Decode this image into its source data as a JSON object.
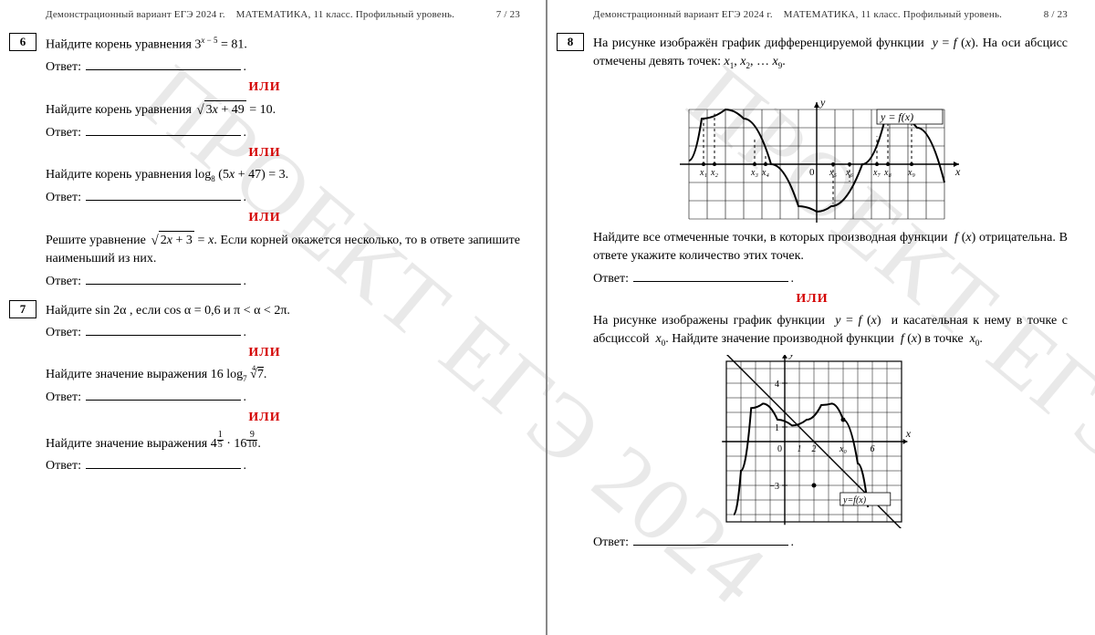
{
  "header": {
    "source": "Демонстрационный вариант ЕГЭ 2024 г.",
    "subject": "МАТЕМАТИКА, 11 класс. Профильный уровень.",
    "page_left": "7 / 23",
    "page_right": "8 / 23"
  },
  "watermark": "ПРОЕКТ ЕГЭ 2024",
  "or_label": "ИЛИ",
  "answer_label": "Ответ:",
  "colors": {
    "or_color": "#d40000",
    "text_color": "#000000",
    "watermark_color": "#d0d0d0"
  },
  "left_page": {
    "problems": [
      {
        "number": "6",
        "variants": [
          {
            "text_prefix": "Найдите корень уравнения ",
            "formula": "3^{x-5}=81",
            "text_suffix": "."
          },
          {
            "text_prefix": "Найдите корень уравнения ",
            "formula": "sqrt(3x+49)=10",
            "text_suffix": "."
          },
          {
            "text_prefix": "Найдите корень уравнения ",
            "formula": "log_8(5x+47)=3",
            "text_suffix": "."
          },
          {
            "text_prefix": "Решите уравнение ",
            "formula": "sqrt(2x+3)=x",
            "text_suffix": ". Если корней окажется несколько, то в ответе запишите наименьший из них."
          }
        ]
      },
      {
        "number": "7",
        "variants": [
          {
            "text_prefix": "Найдите ",
            "formula": "sin 2α",
            "mid": " , если ",
            "formula2": "cos α = 0,6",
            "and": " и ",
            "formula3": "π < α < 2π",
            "text_suffix": "."
          },
          {
            "text_prefix": "Найдите значение выражения ",
            "formula": "16 log_7 ⁴√7",
            "text_suffix": "."
          },
          {
            "text_prefix": "Найдите значение выражения ",
            "formula": "4^{1/5} · 16^{9/10}",
            "text_suffix": "."
          }
        ]
      }
    ]
  },
  "right_page": {
    "problems": [
      {
        "number": "8",
        "variant1": {
          "line1": "На рисунке изображён график дифференцируемой функции",
          "func": "y = f(x)",
          "line2": "На оси абсцисс отмечены девять точек:",
          "points": "x₁, x₂, … x₉",
          "question": "Найдите все отмеченные точки, в которых производная функции",
          "fx": "f(x)",
          "question2": "отрицательна. В ответе укажите количество этих точек."
        },
        "variant2": {
          "line1": "На рисунке изображены график функции",
          "func": "y = f(x)",
          "line1b": "и касательная к нему в точке с абсциссой",
          "x0": "x₀",
          "line2": "Найдите значение производной функции",
          "fx": "f(x)",
          "line3": "в точке",
          "x0b": "x₀"
        }
      }
    ],
    "graph1": {
      "type": "function-plot",
      "x_range": [
        -7,
        7
      ],
      "y_range": [
        -3,
        3.5
      ],
      "grid_color": "#000000",
      "background_color": "#ffffff",
      "curve_points": [
        [
          -7,
          0.2
        ],
        [
          -6.3,
          2.5
        ],
        [
          -5,
          3
        ],
        [
          -4,
          2.5
        ],
        [
          -2.5,
          0
        ],
        [
          -1,
          -2.3
        ],
        [
          0,
          -2.6
        ],
        [
          0.8,
          -2.3
        ],
        [
          2.5,
          0
        ],
        [
          3.7,
          2.3
        ],
        [
          4.5,
          2.6
        ],
        [
          5.5,
          2
        ],
        [
          7,
          -1
        ]
      ],
      "curve_color": "#000000",
      "curve_width": 2,
      "x_markers": [
        {
          "label": "x₁",
          "x": -6.2
        },
        {
          "label": "x₂",
          "x": -5.6
        },
        {
          "label": "x₃",
          "x": -3.4
        },
        {
          "label": "x₄",
          "x": -2.8
        },
        {
          "label": "x₅",
          "x": 0.9
        },
        {
          "label": "x₆",
          "x": 1.8
        },
        {
          "label": "x₇",
          "x": 3.3
        },
        {
          "label": "x₈",
          "x": 3.9
        },
        {
          "label": "x₉",
          "x": 5.2
        }
      ],
      "label_y": "y",
      "label_x": "x",
      "origin_label": "0",
      "func_label": "y = f(x)"
    },
    "graph2": {
      "type": "function-plot",
      "x_range": [
        -4,
        8
      ],
      "y_range": [
        -5,
        6
      ],
      "grid_color": "#000000",
      "curve_points": [
        [
          -3.5,
          -5
        ],
        [
          -3,
          -2
        ],
        [
          -2.3,
          2.3
        ],
        [
          -1.5,
          2.6
        ],
        [
          -0.5,
          1.5
        ],
        [
          0.5,
          1.1
        ],
        [
          1.5,
          1.5
        ],
        [
          2.5,
          2.5
        ],
        [
          3.2,
          2.6
        ],
        [
          4,
          1.5
        ],
        [
          5,
          -1.5
        ],
        [
          5.7,
          -4.5
        ]
      ],
      "tangent_line": {
        "x1": -4,
        "y1": 6,
        "x2": 8,
        "y2": -6
      },
      "curve_color": "#000000",
      "x_ticks": [
        {
          "label": "1",
          "x": 1
        },
        {
          "label": "2",
          "x": 2
        },
        {
          "label": "x₀",
          "x": 4
        },
        {
          "label": "6",
          "x": 6
        }
      ],
      "y_ticks": [
        {
          "label": "4",
          "y": 4
        },
        {
          "label": "1",
          "y": 1
        },
        {
          "label": "−3",
          "y": -3
        }
      ],
      "origin_label": "0",
      "label_x": "x",
      "label_y": "y",
      "func_label": "y=f(x)"
    }
  }
}
